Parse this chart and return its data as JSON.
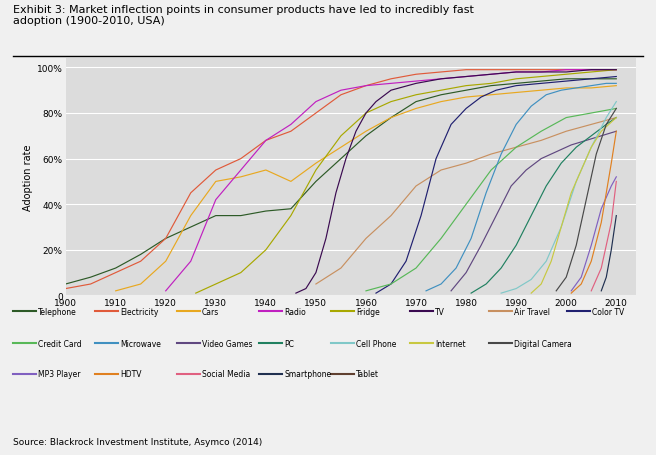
{
  "title": "Exhibit 3: Market inflection points in consumer products have led to incredibly fast\nadoption (1900-2010, USA)",
  "ylabel": "Adoption rate",
  "source": "Source: Blackrock Investment Institute, Asymco (2014)",
  "bg_color": "#dcdcdc",
  "fig_bg": "#f0f0f0",
  "series": [
    {
      "name": "Telephone",
      "color": "#2d5a27",
      "data": {
        "1900": 5,
        "1905": 8,
        "1910": 12,
        "1915": 18,
        "1920": 25,
        "1925": 30,
        "1930": 35,
        "1935": 35,
        "1940": 37,
        "1945": 38,
        "1950": 50,
        "1955": 60,
        "1960": 70,
        "1965": 78,
        "1970": 85,
        "1975": 88,
        "1980": 90,
        "1985": 92,
        "1990": 93,
        "1995": 94,
        "2000": 95,
        "2005": 95,
        "2010": 95
      }
    },
    {
      "name": "Electricity",
      "color": "#e05a3a",
      "data": {
        "1900": 3,
        "1905": 5,
        "1910": 10,
        "1915": 15,
        "1920": 25,
        "1925": 45,
        "1930": 55,
        "1935": 60,
        "1940": 68,
        "1945": 72,
        "1950": 80,
        "1955": 88,
        "1960": 92,
        "1965": 95,
        "1970": 97,
        "1975": 98,
        "1980": 99,
        "1990": 99,
        "2000": 99,
        "2010": 99
      }
    },
    {
      "name": "Cars",
      "color": "#e8a820",
      "data": {
        "1910": 2,
        "1915": 5,
        "1920": 15,
        "1925": 35,
        "1930": 50,
        "1935": 52,
        "1940": 55,
        "1945": 50,
        "1950": 58,
        "1955": 65,
        "1960": 72,
        "1965": 78,
        "1970": 82,
        "1975": 85,
        "1980": 87,
        "1985": 88,
        "1990": 89,
        "1995": 90,
        "2000": 91,
        "2005": 91,
        "2010": 92
      }
    },
    {
      "name": "Radio",
      "color": "#c020c0",
      "data": {
        "1920": 2,
        "1925": 15,
        "1930": 42,
        "1935": 55,
        "1940": 68,
        "1945": 75,
        "1950": 85,
        "1955": 90,
        "1960": 92,
        "1965": 93,
        "1970": 94,
        "1975": 95,
        "1980": 96,
        "1985": 97,
        "1990": 98,
        "1995": 98,
        "2000": 99,
        "2005": 99,
        "2010": 99
      }
    },
    {
      "name": "Fridge",
      "color": "#a8a800",
      "data": {
        "1926": 1,
        "1930": 5,
        "1935": 10,
        "1940": 20,
        "1945": 35,
        "1950": 55,
        "1955": 70,
        "1960": 80,
        "1965": 85,
        "1970": 88,
        "1975": 90,
        "1980": 92,
        "1985": 93,
        "1990": 95,
        "1995": 96,
        "2000": 97,
        "2005": 98,
        "2010": 99
      }
    },
    {
      "name": "TV",
      "color": "#3a0a50",
      "data": {
        "1946": 1,
        "1948": 3,
        "1950": 10,
        "1952": 25,
        "1954": 45,
        "1956": 60,
        "1958": 72,
        "1960": 80,
        "1962": 85,
        "1965": 90,
        "1970": 93,
        "1975": 95,
        "1980": 96,
        "1985": 97,
        "1990": 98,
        "1995": 98,
        "2000": 98,
        "2005": 99,
        "2010": 99
      }
    },
    {
      "name": "Air Travel",
      "color": "#c89060",
      "data": {
        "1950": 5,
        "1955": 12,
        "1960": 25,
        "1965": 35,
        "1970": 48,
        "1975": 55,
        "1980": 58,
        "1985": 62,
        "1990": 65,
        "1995": 68,
        "2000": 72,
        "2005": 75,
        "2010": 78
      }
    },
    {
      "name": "Color TV",
      "color": "#202070",
      "data": {
        "1962": 1,
        "1965": 5,
        "1968": 15,
        "1971": 35,
        "1974": 60,
        "1977": 75,
        "1980": 82,
        "1983": 87,
        "1986": 90,
        "1990": 92,
        "1995": 93,
        "2000": 94,
        "2005": 95,
        "2010": 96
      }
    },
    {
      "name": "Credit Card",
      "color": "#58b858",
      "data": {
        "1960": 2,
        "1965": 5,
        "1970": 12,
        "1975": 25,
        "1980": 40,
        "1985": 55,
        "1990": 65,
        "1995": 72,
        "2000": 78,
        "2005": 80,
        "2010": 82
      }
    },
    {
      "name": "Microwave",
      "color": "#4090c0",
      "data": {
        "1972": 2,
        "1975": 5,
        "1978": 12,
        "1981": 25,
        "1984": 45,
        "1987": 62,
        "1990": 75,
        "1993": 83,
        "1996": 88,
        "1999": 90,
        "2002": 91,
        "2005": 92,
        "2008": 93,
        "2010": 93
      }
    },
    {
      "name": "Video Games",
      "color": "#604880",
      "data": {
        "1977": 2,
        "1980": 10,
        "1983": 22,
        "1986": 35,
        "1989": 48,
        "1992": 55,
        "1995": 60,
        "1998": 63,
        "2001": 66,
        "2004": 68,
        "2007": 70,
        "2010": 72
      }
    },
    {
      "name": "PC",
      "color": "#208060",
      "data": {
        "1981": 1,
        "1984": 5,
        "1987": 12,
        "1990": 22,
        "1993": 35,
        "1996": 48,
        "1999": 58,
        "2002": 65,
        "2005": 70,
        "2008": 75,
        "2010": 78
      }
    },
    {
      "name": "Cell Phone",
      "color": "#80c8c8",
      "data": {
        "1987": 1,
        "1990": 3,
        "1993": 7,
        "1996": 15,
        "1999": 30,
        "2002": 50,
        "2005": 65,
        "2008": 78,
        "2010": 85
      }
    },
    {
      "name": "Internet",
      "color": "#c8c840",
      "data": {
        "1993": 1,
        "1995": 5,
        "1997": 15,
        "1999": 30,
        "2001": 45,
        "2003": 55,
        "2005": 65,
        "2007": 72,
        "2009": 76,
        "2010": 78
      }
    },
    {
      "name": "Digital Camera",
      "color": "#484848",
      "data": {
        "1998": 2,
        "2000": 8,
        "2002": 22,
        "2004": 42,
        "2006": 62,
        "2008": 75,
        "2010": 82
      }
    },
    {
      "name": "MP3 Player",
      "color": "#8060c0",
      "data": {
        "2001": 2,
        "2003": 8,
        "2005": 22,
        "2007": 38,
        "2009": 48,
        "2010": 52
      }
    },
    {
      "name": "HDTV",
      "color": "#e08020",
      "data": {
        "2001": 1,
        "2003": 5,
        "2005": 15,
        "2007": 32,
        "2009": 58,
        "2010": 72
      }
    },
    {
      "name": "Social Media",
      "color": "#e06080",
      "data": {
        "2005": 2,
        "2007": 12,
        "2009": 32,
        "2010": 50
      }
    },
    {
      "name": "Smartphone",
      "color": "#203050",
      "data": {
        "2007": 2,
        "2008": 8,
        "2009": 20,
        "2010": 35
      }
    },
    {
      "name": "Tablet",
      "color": "#604030",
      "data": {
        "2010": 4
      }
    }
  ],
  "legend_layout": [
    [
      "Telephone",
      "Electricity",
      "Cars",
      "Radio",
      "Fridge",
      "TV",
      "Air Travel",
      "Color TV"
    ],
    [
      "Credit Card",
      "Microwave",
      "Video Games",
      "PC",
      "Cell Phone",
      "Internet",
      "Digital Camera"
    ],
    [
      "MP3 Player",
      "HDTV",
      "Social Media",
      "Smartphone",
      "Tablet"
    ]
  ]
}
